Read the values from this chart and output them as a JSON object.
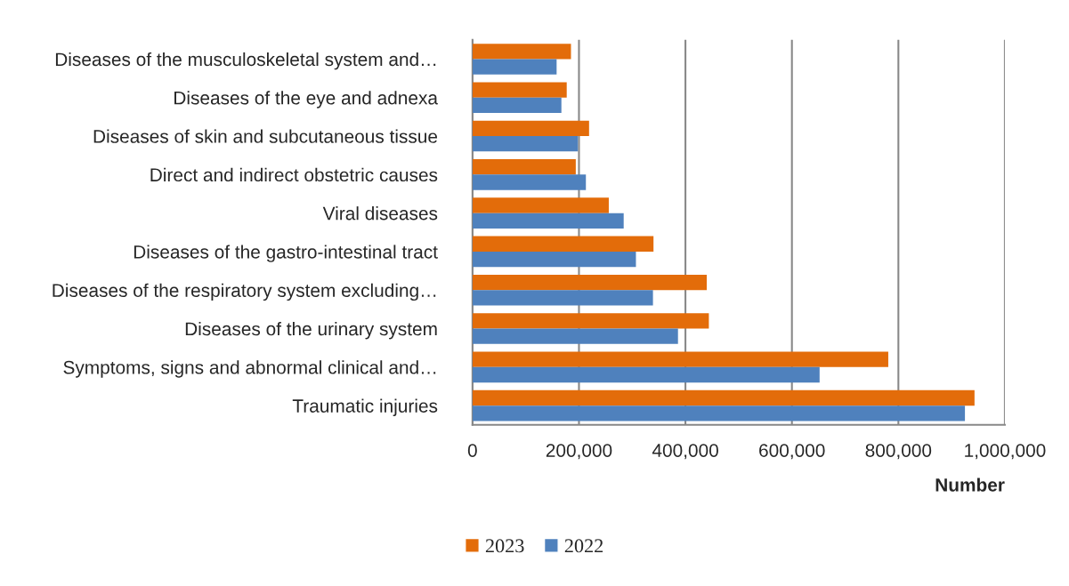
{
  "chart_data": {
    "type": "bar",
    "orientation": "horizontal",
    "xlabel": "Number",
    "categories": [
      "Diseases of the musculoskeletal system and…",
      "Diseases of the eye and adnexa",
      "Diseases of skin and subcutaneous tissue",
      "Direct and indirect obstetric causes",
      "Viral diseases",
      "Diseases of the gastro-intestinal tract",
      "Diseases of the respiratory system excluding…",
      "Diseases of the urinary system",
      "Symptoms, signs and abnormal clinical and…",
      "Traumatic injuries"
    ],
    "series": [
      {
        "name": "2023",
        "color": "#e36c0a",
        "values": [
          185000,
          177000,
          219000,
          194000,
          256000,
          340000,
          440000,
          444000,
          781000,
          943000
        ]
      },
      {
        "name": "2022",
        "color": "#4f81bd",
        "values": [
          158000,
          167000,
          198000,
          213000,
          284000,
          307000,
          339000,
          386000,
          652000,
          925000
        ]
      }
    ],
    "xlim": [
      0,
      1000000
    ],
    "xticks": [
      0,
      {
        "value": 200000,
        "label": "200,000"
      },
      {
        "value": 400000,
        "label": "400,000"
      },
      {
        "value": 600000,
        "label": "600,000"
      },
      {
        "value": 800000,
        "label": "800,000"
      },
      {
        "value": 1000000,
        "label": "1,000,000"
      }
    ],
    "grid": "x",
    "legend": "bottom"
  }
}
